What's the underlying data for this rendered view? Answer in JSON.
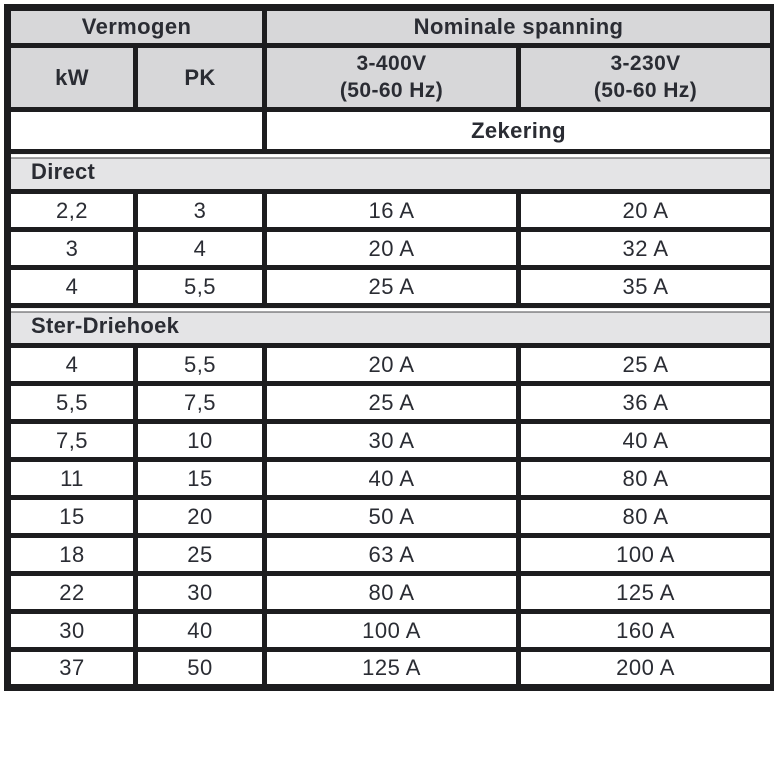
{
  "table": {
    "header": {
      "group_power": "Vermogen",
      "group_voltage": "Nominale spanning",
      "col_kw": "kW",
      "col_pk": "PK",
      "col_400v_line1": "3-400V",
      "col_400v_line2": "(50-60 Hz)",
      "col_230v_line1": "3-230V",
      "col_230v_line2": "(50-60 Hz)",
      "fuse_label": "Zekering"
    },
    "column_keys": [
      "kw",
      "pk",
      "zekering-3-400v",
      "zekering-3-230v"
    ],
    "sections": [
      {
        "title": "Direct",
        "rows": [
          [
            "2,2",
            "3",
            "16 A",
            "20 A"
          ],
          [
            "3",
            "4",
            "20 A",
            "32 A"
          ],
          [
            "4",
            "5,5",
            "25 A",
            "35 A"
          ]
        ]
      },
      {
        "title": "Ster-Driehoek",
        "rows": [
          [
            "4",
            "5,5",
            "20 A",
            "25 A"
          ],
          [
            "5,5",
            "7,5",
            "25 A",
            "36 A"
          ],
          [
            "7,5",
            "10",
            "30 A",
            "40 A"
          ],
          [
            "11",
            "15",
            "40 A",
            "80 A"
          ],
          [
            "15",
            "20",
            "50 A",
            "80 A"
          ],
          [
            "18",
            "25",
            "63 A",
            "100 A"
          ],
          [
            "22",
            "30",
            "80 A",
            "125 A"
          ],
          [
            "30",
            "40",
            "100 A",
            "160 A"
          ],
          [
            "37",
            "50",
            "125 A",
            "200 A"
          ]
        ]
      }
    ],
    "colors": {
      "border": "#1d1d1f",
      "header_bg": "#d7d7d9",
      "section_bg": "#e4e4e6",
      "text": "#2a2c33"
    }
  }
}
